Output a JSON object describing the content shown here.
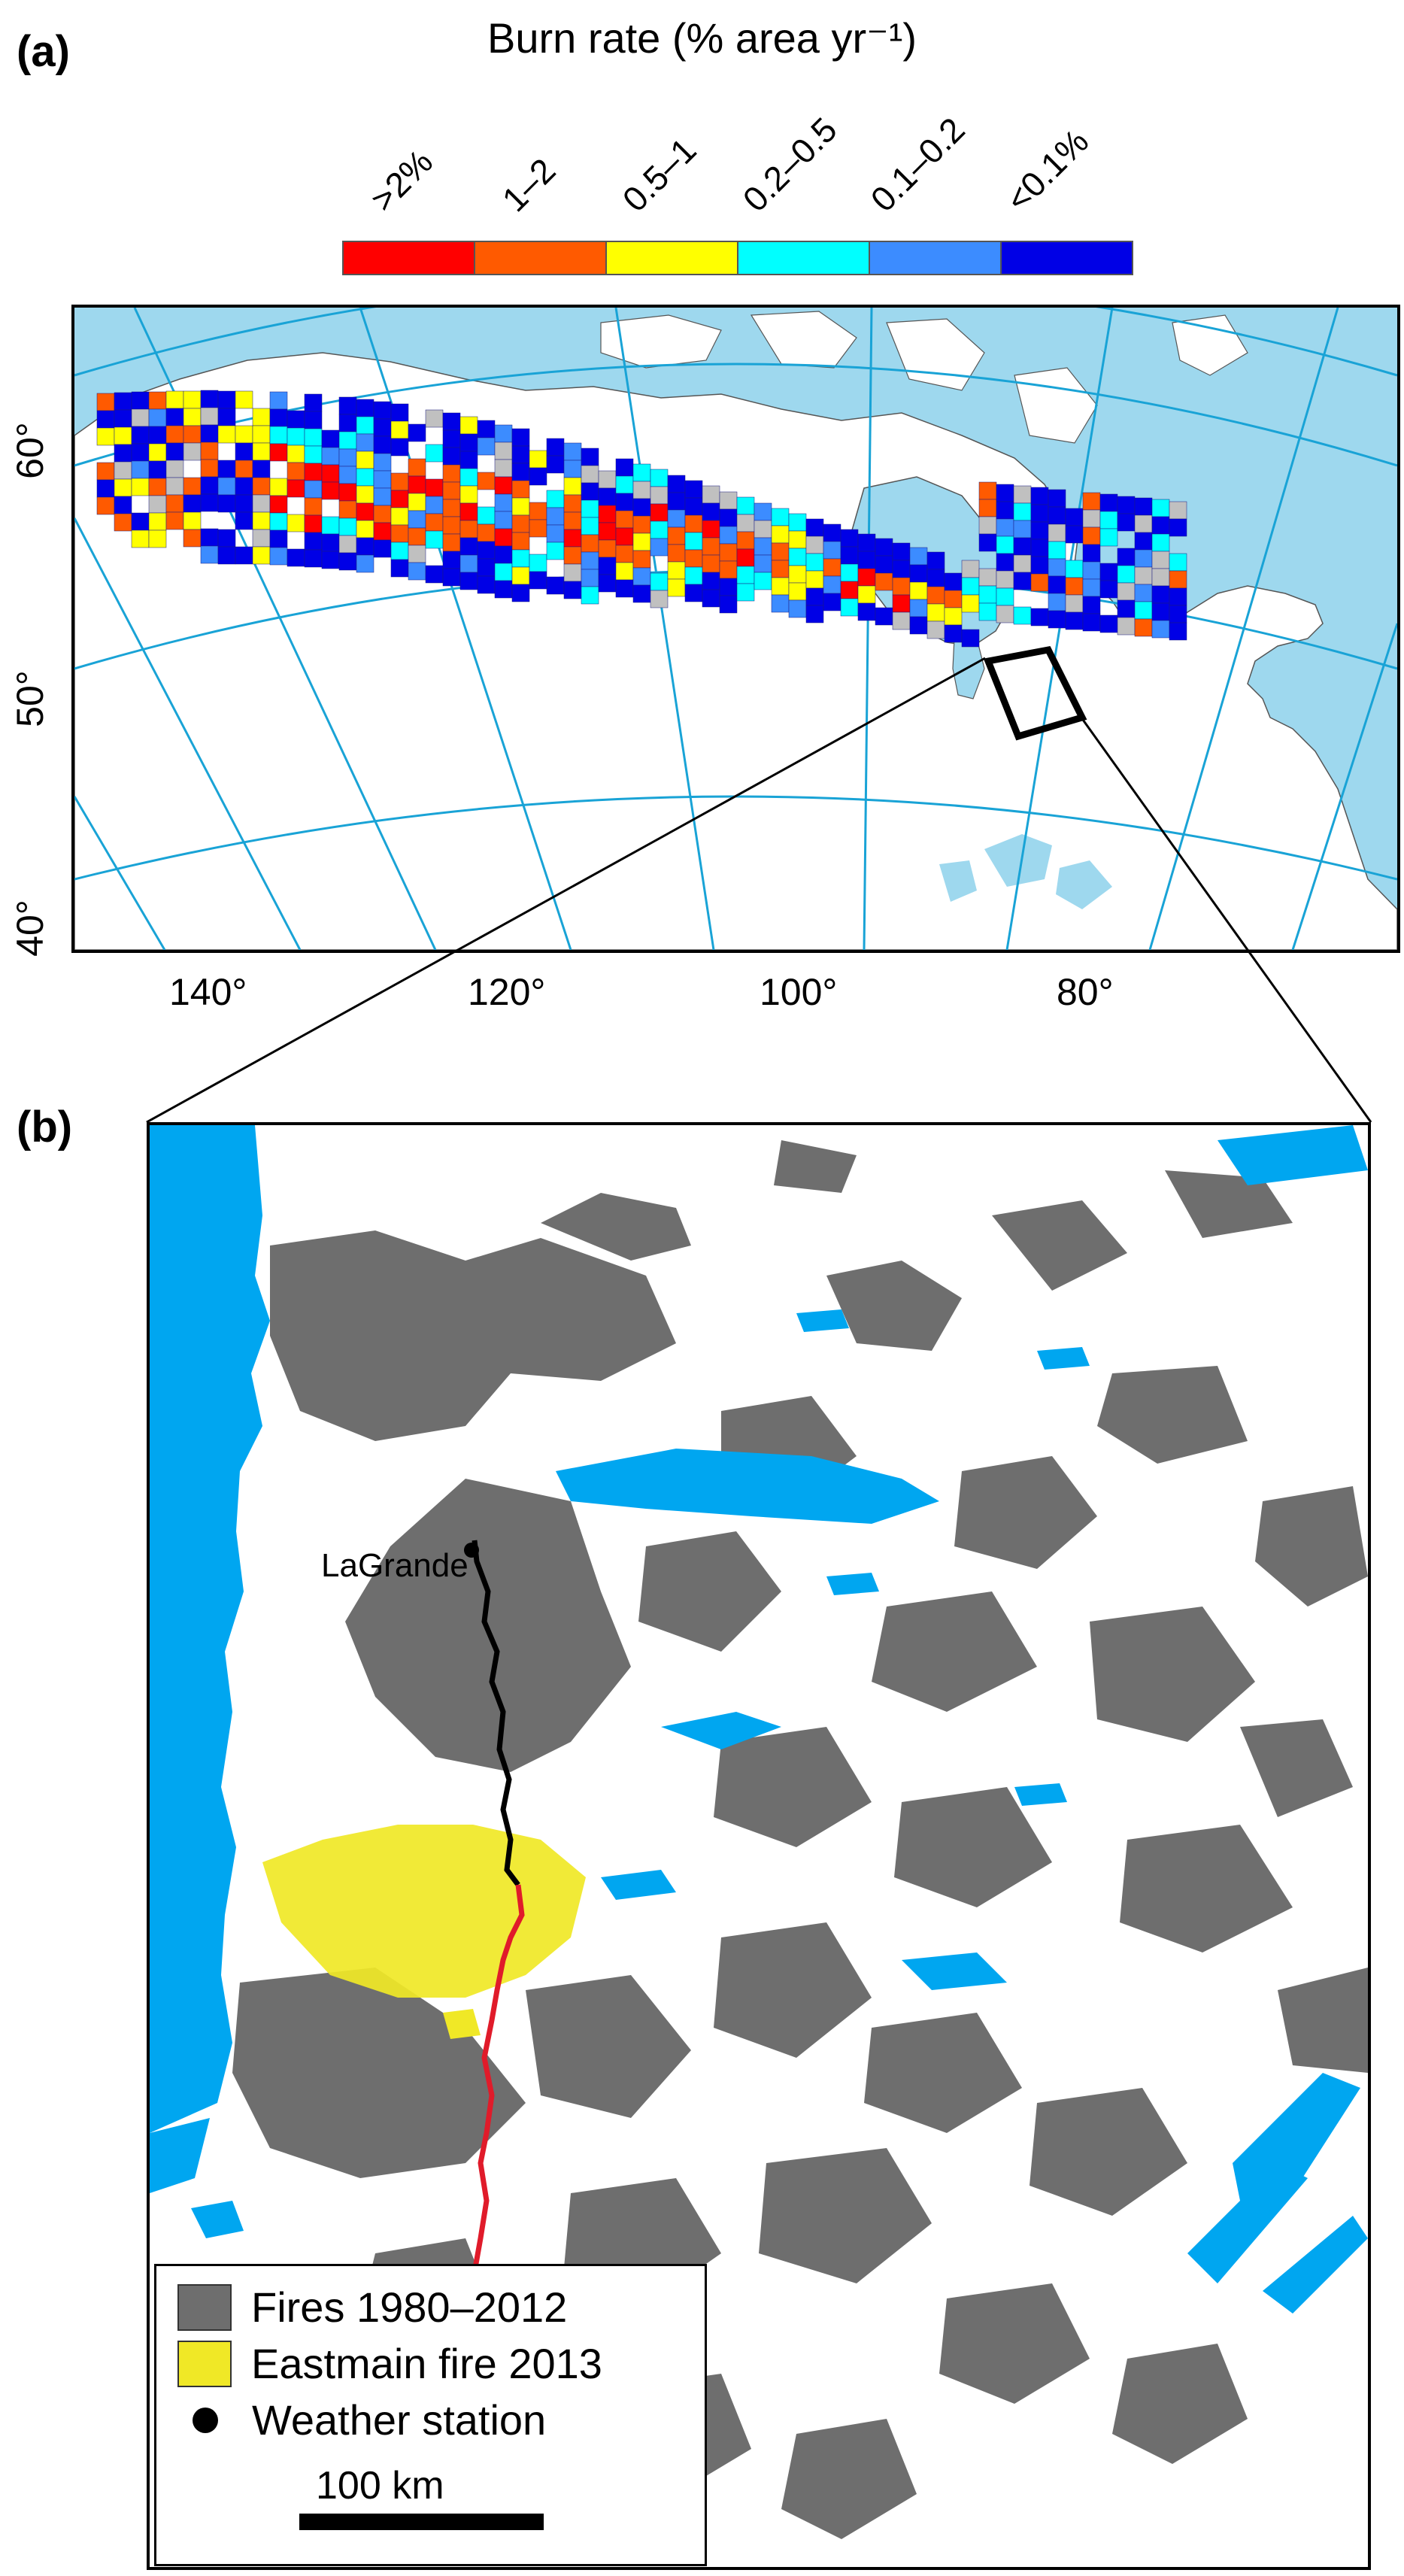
{
  "panel_a": {
    "label": "(a)",
    "colorbar": {
      "title": "Burn rate (% area yr⁻¹)",
      "classes": [
        {
          "label": ">2%",
          "color": "#ff0000"
        },
        {
          "label": "1–2",
          "color": "#ff5a00"
        },
        {
          "label": "0.5–1",
          "color": "#ffff00"
        },
        {
          "label": "0.2–0.5",
          "color": "#00ffff"
        },
        {
          "label": "0.1–0.2",
          "color": "#3c8cff"
        },
        {
          "label": "<0.1%",
          "color": "#0000e6"
        }
      ]
    },
    "colors": {
      "ocean": "#9ed8ee",
      "land": "#ffffff",
      "graticule": "#19a3d6",
      "nodata": "#c0c0c0"
    },
    "longitude_labels": [
      "140°",
      "120°",
      "100°",
      "80°"
    ],
    "latitude_labels": [
      "60°",
      "50°",
      "40°"
    ]
  },
  "panel_b": {
    "label": "(b)",
    "station_label": "LaGrande",
    "colors": {
      "water": "#00a6f0",
      "land": "#ffffff",
      "fires": "#6e6e6e",
      "eastmain": "#f0e826",
      "route_north": "#000000",
      "route_south": "#e01b2a"
    },
    "legend": [
      {
        "label": "Fires 1980–2012",
        "swatch": "#6e6e6e"
      },
      {
        "label": "Eastmain fire 2013",
        "swatch": "#f0e826"
      },
      {
        "label": "Weather station",
        "swatch": "dot"
      }
    ],
    "scale_label": "100 km"
  }
}
